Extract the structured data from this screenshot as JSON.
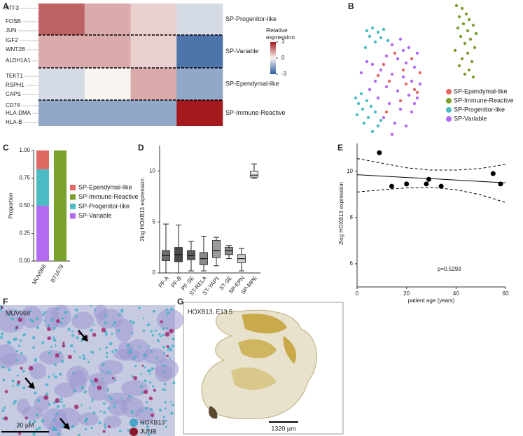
{
  "panel_labels": [
    "A",
    "B",
    "C",
    "D",
    "E",
    "F",
    "G"
  ],
  "chart_data": [
    {
      "type": "heatmap",
      "colorbar_title": "Relative expression",
      "zlim": [
        -3,
        3
      ],
      "zticks": [
        3,
        0,
        -3
      ],
      "colors": [
        "#2b5c9e",
        "#f7f4f2",
        "#a3191d"
      ],
      "genes": [
        "ATF3",
        "FOSB",
        "JUN",
        "IGF2",
        "WNT2B",
        "ALDH1A1",
        "TEKT1",
        "RSPH1",
        "CAPS",
        "CD74",
        "HLA-DMA",
        "HLA-B"
      ],
      "rows": [
        "SP-Progenitor-like",
        "SP-Variable",
        "SP-Ependymal-like",
        "SP-Immune-Reactive"
      ],
      "columns": [
        null,
        null,
        null,
        null
      ],
      "values": [
        [
          2,
          1,
          0.5,
          -0.5
        ],
        [
          1,
          1,
          0.5,
          -2.5
        ],
        [
          -0.5,
          0,
          1,
          -1.5
        ],
        [
          -1.5,
          -1.5,
          -1.5,
          3
        ]
      ]
    },
    {
      "type": "scatter",
      "xlim": [
        0,
        100
      ],
      "ylim": [
        0,
        100
      ],
      "series": [
        {
          "name": "SP-Ependymal-like",
          "color": "#e06a63",
          "x": [
            32,
            44,
            24,
            38,
            50,
            28,
            46,
            20,
            36,
            48,
            26,
            40
          ],
          "values": [
            62,
            58,
            54,
            50,
            48,
            42,
            36,
            46,
            28,
            34,
            20,
            40
          ]
        },
        {
          "name": "SP-Immune-Reactive",
          "color": "#7aa12e",
          "x": [
            76,
            80,
            83,
            78,
            85,
            81,
            88,
            77,
            84,
            90,
            79,
            86,
            82,
            89,
            75,
            84,
            80,
            87,
            78,
            85,
            82,
            88
          ],
          "values": [
            96,
            94,
            90,
            88,
            86,
            83,
            82,
            80,
            78,
            76,
            74,
            72,
            69,
            66,
            64,
            62,
            58,
            56,
            53,
            50,
            47,
            45
          ]
        },
        {
          "name": "SP-Progenitor-like",
          "color": "#4dbbc4",
          "x": [
            12,
            16,
            20,
            24,
            14,
            22,
            18,
            27,
            11,
            4,
            8,
            6,
            12,
            9,
            15,
            5,
            13,
            18,
            10,
            20,
            16,
            22
          ],
          "values": [
            78,
            80,
            77,
            79,
            74,
            73,
            70,
            71,
            66,
            30,
            33,
            26,
            28,
            22,
            24,
            18,
            16,
            20,
            12,
            10,
            6,
            14
          ]
        },
        {
          "name": "SP-Variable",
          "color": "#b36bf2",
          "x": [
            30,
            36,
            42,
            48,
            26,
            34,
            40,
            46,
            22,
            30,
            38,
            44,
            50,
            18,
            26,
            34,
            42,
            48,
            20,
            28,
            36,
            44,
            24,
            32,
            40,
            14,
            46,
            30,
            38,
            16,
            8,
            12
          ],
          "values": [
            68,
            72,
            66,
            62,
            60,
            58,
            55,
            52,
            50,
            47,
            45,
            42,
            40,
            42,
            38,
            35,
            32,
            30,
            30,
            26,
            22,
            20,
            16,
            12,
            10,
            36,
            26,
            4,
            64,
            54,
            48,
            56
          ]
        }
      ]
    },
    {
      "type": "bar",
      "stacked": true,
      "ylabel": "Proportion",
      "categories": [
        "MUV068",
        "BT1678"
      ],
      "ylim": [
        0,
        1
      ],
      "yticks": [
        {
          "value": 0,
          "label": "0.00"
        },
        {
          "value": 0.25,
          "label": "0.25"
        },
        {
          "value": 0.5,
          "label": "0.50"
        },
        {
          "value": 0.75,
          "label": "0.75"
        },
        {
          "value": 1,
          "label": "1.00"
        }
      ],
      "series": [
        {
          "name": "SP-Ependymal-like",
          "color": "#e06a63",
          "values": [
            0.17,
            0
          ]
        },
        {
          "name": "SP-Immune-Reactive",
          "color": "#7aa12e",
          "values": [
            0,
            1
          ]
        },
        {
          "name": "SP-Progenitor-like",
          "color": "#4dbbc4",
          "values": [
            0.33,
            0
          ]
        },
        {
          "name": "SP-Variable",
          "color": "#b36bf2",
          "values": [
            0.5,
            0
          ]
        }
      ]
    },
    {
      "type": "box",
      "ylabel": "2log HOXB13 expression",
      "categories": [
        "PF-A",
        "PF-B",
        "PF-SE",
        "ST-RELA",
        "ST-YAP1",
        "ST-SE",
        "SP-EPN",
        "SP-MPE"
      ],
      "colors": [
        "#6e6e6e",
        "#4a4a4a",
        "#5e5e5e",
        "#8a8a8a",
        "#9a9a9a",
        "#8c8c8c",
        "#cdcdcd",
        "#ececec"
      ],
      "min": [
        0,
        0,
        0.2,
        0.2,
        0.7,
        1.4,
        0.2,
        9.3
      ],
      "q1": [
        1.2,
        1.1,
        1.3,
        0.8,
        1.5,
        1.8,
        1.0,
        9.4
      ],
      "median": [
        1.7,
        1.8,
        1.7,
        1.4,
        2.2,
        2.2,
        1.4,
        9.6
      ],
      "q3": [
        2.2,
        2.5,
        2.2,
        2.0,
        3.2,
        2.5,
        1.8,
        10.0
      ],
      "max": [
        4.8,
        4.7,
        3.1,
        3.6,
        3.5,
        2.7,
        2.4,
        10.7
      ],
      "ylim": [
        0,
        12.5
      ],
      "yticks": [
        0,
        5,
        10
      ]
    },
    {
      "type": "scatter",
      "xlabel": "patient age (years)",
      "ylabel": "2log HOXB13 expression",
      "annotation": "p=0.5293",
      "color": "#000000",
      "x": [
        9,
        14,
        20,
        28,
        29,
        34,
        55,
        58
      ],
      "values": [
        10.8,
        9.35,
        9.45,
        9.45,
        9.65,
        9.35,
        9.9,
        9.45
      ],
      "fit": {
        "x": [
          0,
          10,
          20,
          30,
          40,
          50,
          60
        ],
        "values": [
          9.85,
          9.79,
          9.73,
          9.68,
          9.62,
          9.56,
          9.5
        ],
        "upper": [
          10.55,
          10.35,
          10.15,
          10.05,
          10.05,
          10.12,
          10.3
        ],
        "lower": [
          9.1,
          9.2,
          9.28,
          9.3,
          9.2,
          8.98,
          8.65
        ]
      },
      "xlim": [
        0,
        60
      ],
      "xticks": [
        0,
        20,
        40,
        60
      ],
      "ylim": [
        5,
        11.2
      ],
      "yticks": [
        6,
        8,
        10
      ]
    }
  ],
  "images": [
    {
      "label": "MUV068",
      "scale_bar": "20 µM",
      "legend": [
        "HOXB13",
        "JUNB"
      ],
      "legend_colors": [
        "#4aa3c8",
        "#8b1a2b"
      ]
    },
    {
      "label": "HOXB13, E13.5",
      "scale_bar": "1320 µm"
    }
  ]
}
